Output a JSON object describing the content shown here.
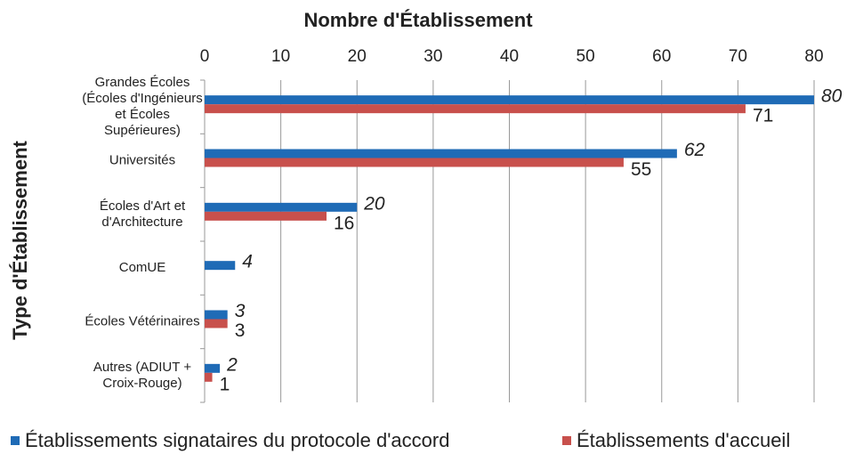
{
  "chart_data": {
    "type": "hbar",
    "title": "Nombre d'Établissement",
    "y_label": "Type d'Établissement",
    "categories": [
      [
        "Grandes Écoles",
        "(Écoles d'Ingénieurs",
        "et Écoles",
        "Supérieures)"
      ],
      [
        "Universités"
      ],
      [
        "Écoles d'Art et",
        "d'Architecture"
      ],
      [
        "ComUE"
      ],
      [
        "Écoles Vétérinaires"
      ],
      [
        "Autres (ADIUT +",
        "Croix-Rouge)"
      ]
    ],
    "series": [
      {
        "name": "Établissements signataires du protocole d'accord",
        "color": "#1f6bb6",
        "values": [
          80,
          62,
          20,
          4,
          3,
          2
        ]
      },
      {
        "name": "Établissements d'accueil",
        "color": "#c8504c",
        "values": [
          71,
          55,
          16,
          null,
          3,
          1
        ]
      }
    ],
    "xlim": [
      0,
      80
    ],
    "xticks": [
      0,
      10,
      20,
      30,
      40,
      50,
      60,
      70,
      80
    ],
    "grid": true,
    "legend": "bottom"
  }
}
